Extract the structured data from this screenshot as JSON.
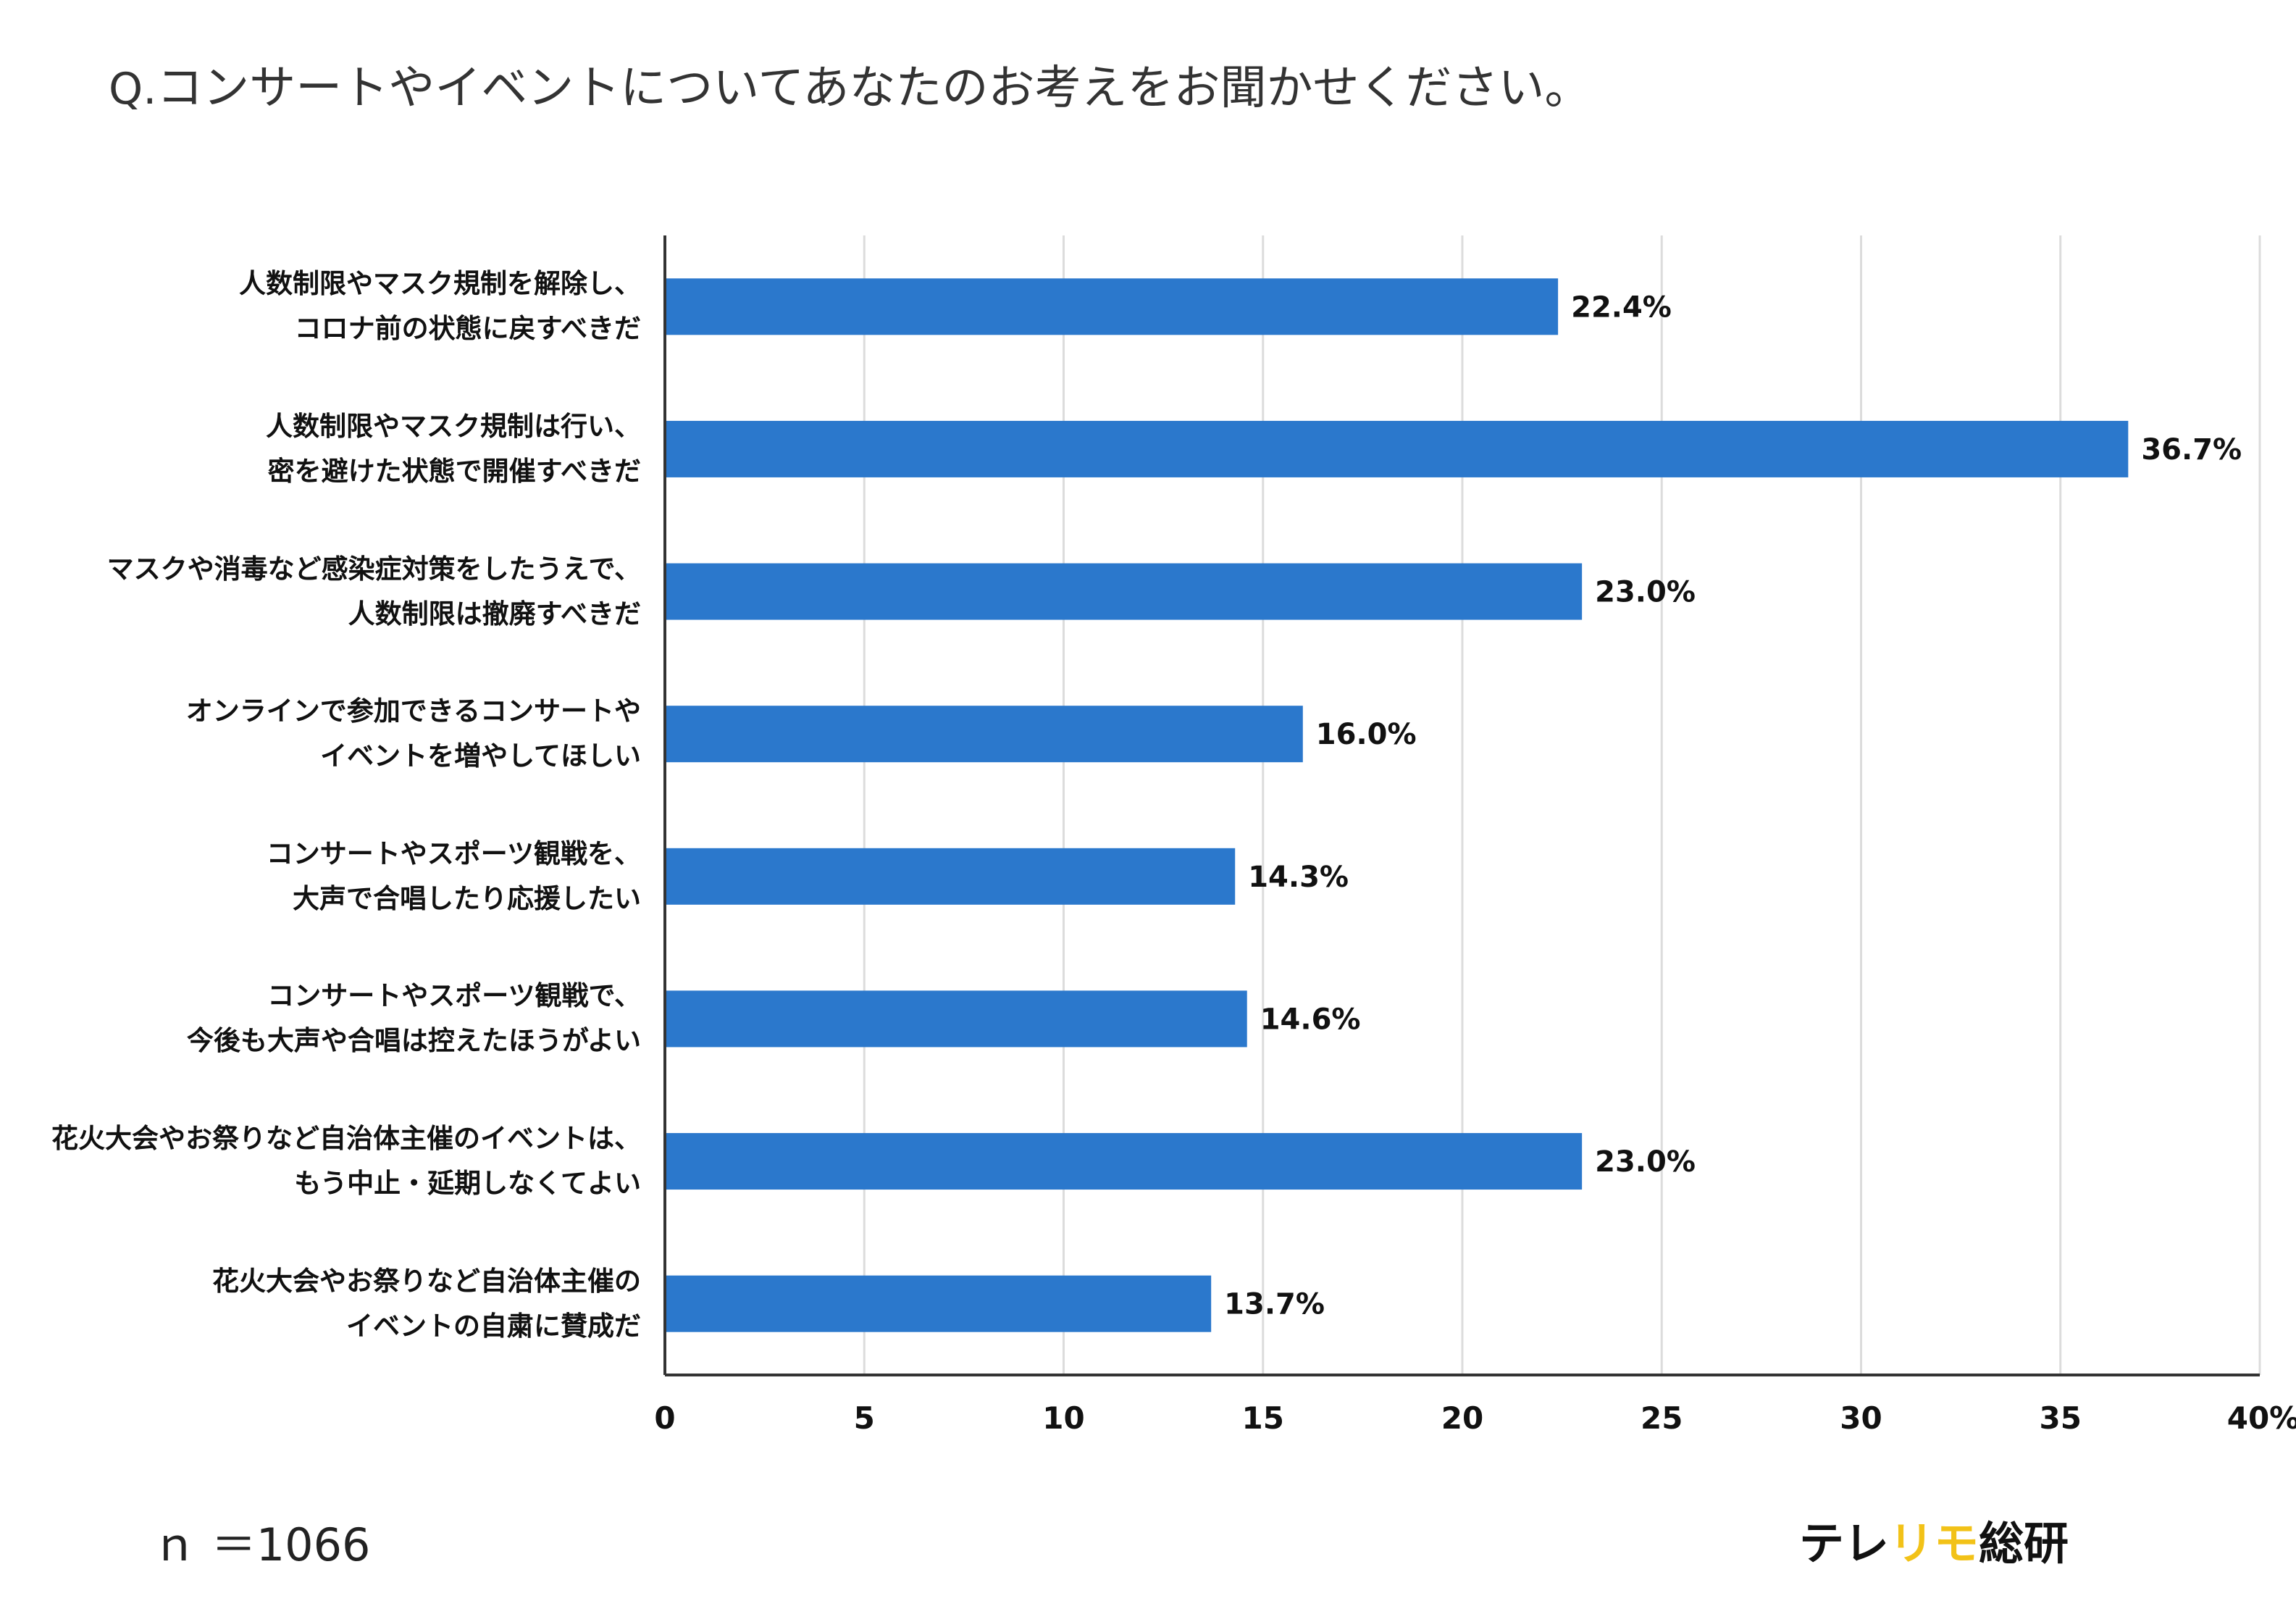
{
  "question": {
    "prefix": "Q.",
    "text": "コンサートやイベントについてあなたのお考えをお聞かせください。"
  },
  "chart_data": {
    "type": "bar",
    "orientation": "horizontal",
    "title": "Q.コンサートやイベントについてあなたのお考えをお聞かせください。",
    "categories": [
      [
        "人数制限やマスク規制を解除し、",
        "コロナ前の状態に戻すべきだ"
      ],
      [
        "人数制限やマスク規制は行い、",
        "密を避けた状態で開催すべきだ"
      ],
      [
        "マスクや消毒など感染症対策をしたうえで、",
        "人数制限は撤廃すべきだ"
      ],
      [
        "オンラインで参加できるコンサートや",
        "イベントを増やしてほしい"
      ],
      [
        "コンサートやスポーツ観戦を、",
        "大声で合唱したり応援したい"
      ],
      [
        "コンサートやスポーツ観戦で、",
        "今後も大声や合唱は控えたほうがよい"
      ],
      [
        "花火大会やお祭りなど自治体主催のイベントは、",
        "もう中止・延期しなくてよい"
      ],
      [
        "花火大会やお祭りなど自治体主催の",
        "イベントの自粛に賛成だ"
      ]
    ],
    "values": [
      22.4,
      36.7,
      23.0,
      16.0,
      14.3,
      14.6,
      23.0,
      13.7
    ],
    "value_labels": [
      "22.4%",
      "36.7%",
      "23.0%",
      "16.0%",
      "14.3%",
      "14.6%",
      "23.0%",
      "13.7%"
    ],
    "xlim": [
      0,
      40
    ],
    "xticks": [
      "0",
      "5",
      "10",
      "15",
      "20",
      "25",
      "30",
      "35",
      "40%"
    ],
    "xtick_values": [
      0,
      5,
      10,
      15,
      20,
      25,
      30,
      35,
      40
    ],
    "grid": true,
    "bar_color": "#2b78cc"
  },
  "footer": {
    "sample": "ｎ ＝1066",
    "brand_part1": "テレ",
    "brand_part2": "リモ",
    "brand_part3": "総研"
  }
}
